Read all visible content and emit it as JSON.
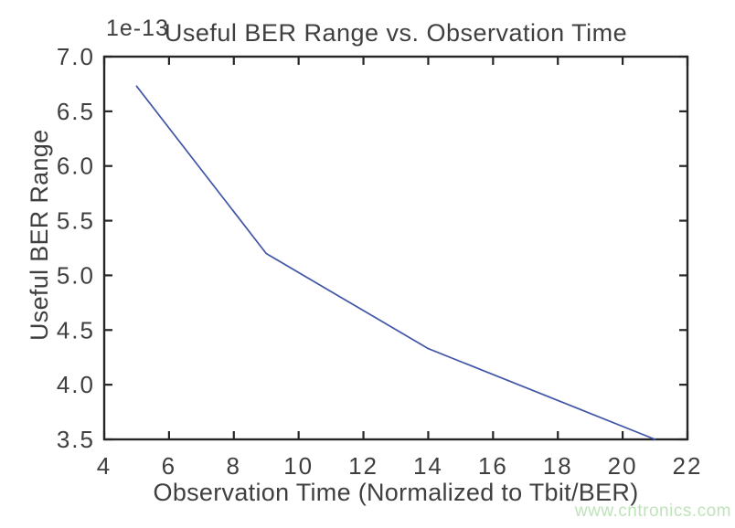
{
  "watermark": {
    "text": "www.cntronics.com",
    "color": "#bfe3ba"
  },
  "chart_data": {
    "type": "line",
    "title": "Useful BER Range vs. Observation Time",
    "xlabel": "Observation Time (Normalized to Tbit/BER)",
    "ylabel": "Useful BER Range",
    "y_offset_label": "1e-13",
    "series": [
      {
        "name": "Useful BER Range",
        "x": [
          5,
          9,
          14,
          21
        ],
        "y": [
          6.73,
          5.2,
          4.33,
          3.5
        ]
      }
    ],
    "y_units_note": "y values are multiples of 1e-13",
    "xlim": [
      4,
      22
    ],
    "ylim": [
      3.5,
      7.0
    ],
    "xticks": [
      4,
      6,
      8,
      10,
      12,
      14,
      16,
      18,
      20,
      22
    ],
    "yticks": [
      3.5,
      4.0,
      4.5,
      5.0,
      5.5,
      6.0,
      6.5,
      7.0
    ],
    "grid": false,
    "legend": null,
    "line_color": "#4155a7",
    "axis_color": "#262626",
    "text_color": "#3f3f3f",
    "background_color": "#ffffff"
  }
}
